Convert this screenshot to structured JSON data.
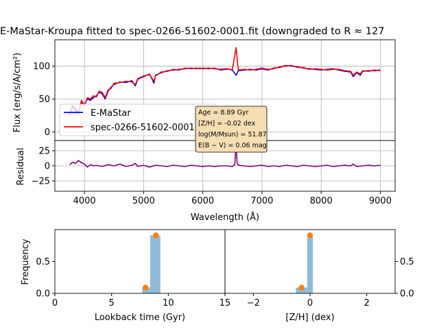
{
  "chart_data": [
    {
      "type": "line",
      "title": "E-MaStar-Kroupa fitted to spec-0266-51602-0001.fit (downgraded to R ≈ 127",
      "ylabel": "Flux (erg/s/A/cm²)",
      "xlim": [
        3500,
        9250
      ],
      "ylim": [
        -13,
        140
      ],
      "yticks": [
        0,
        50,
        100
      ],
      "grid": true,
      "legend_position": "center-left",
      "series": [
        {
          "name": "E-MaStar",
          "color": "#0000ff",
          "x": [
            3750,
            3800,
            3850,
            3900,
            3950,
            4000,
            4050,
            4100,
            4150,
            4200,
            4250,
            4300,
            4350,
            4400,
            4450,
            4500,
            4600,
            4700,
            4800,
            4861,
            4900,
            5000,
            5100,
            5175,
            5200,
            5300,
            5400,
            5500,
            5600,
            5700,
            5800,
            5893,
            5950,
            6000,
            6100,
            6200,
            6300,
            6400,
            6500,
            6563,
            6600,
            6700,
            6800,
            6900,
            7000,
            7100,
            7200,
            7300,
            7400,
            7500,
            7600,
            7700,
            7800,
            7900,
            8000,
            8100,
            8200,
            8300,
            8400,
            8500,
            8542,
            8600,
            8662,
            8700,
            8800,
            8900,
            9000
          ],
          "y": [
            28,
            40,
            35,
            30,
            45,
            42,
            50,
            48,
            52,
            55,
            60,
            58,
            50,
            62,
            68,
            72,
            76,
            75,
            78,
            70,
            80,
            84,
            88,
            74,
            86,
            90,
            93,
            94,
            95,
            96,
            97,
            96,
            97,
            96,
            97,
            96,
            95,
            96,
            94,
            86,
            93,
            94,
            95,
            94,
            96,
            94,
            97,
            98,
            101,
            100,
            99,
            97,
            96,
            95,
            94,
            95,
            96,
            94,
            92,
            91,
            84,
            90,
            86,
            92,
            93,
            93,
            94
          ]
        },
        {
          "name": "spec-0266-51602-0001.fit",
          "color": "#ff0000",
          "x": [
            3750,
            3800,
            3850,
            3900,
            3950,
            4000,
            4050,
            4100,
            4150,
            4200,
            4250,
            4300,
            4350,
            4400,
            4450,
            4500,
            4600,
            4700,
            4800,
            4861,
            4900,
            5000,
            5100,
            5175,
            5200,
            5300,
            5400,
            5500,
            5600,
            5700,
            5800,
            5893,
            5950,
            6000,
            6100,
            6200,
            6300,
            6400,
            6500,
            6563,
            6600,
            6700,
            6800,
            6900,
            7000,
            7100,
            7200,
            7300,
            7400,
            7500,
            7600,
            7700,
            7800,
            7900,
            8000,
            8100,
            8200,
            8300,
            8400,
            8500,
            8542,
            8600,
            8662,
            8700,
            8800,
            8900,
            9000
          ],
          "y": [
            25,
            38,
            32,
            28,
            48,
            40,
            52,
            50,
            55,
            53,
            62,
            60,
            52,
            64,
            66,
            74,
            75,
            77,
            76,
            72,
            81,
            85,
            87,
            77,
            85,
            91,
            92,
            95,
            94,
            97,
            96,
            97,
            96,
            97,
            96,
            97,
            94,
            95,
            95,
            128,
            94,
            95,
            94,
            95,
            97,
            95,
            96,
            99,
            100,
            101,
            98,
            98,
            95,
            96,
            95,
            94,
            95,
            95,
            93,
            92,
            86,
            91,
            88,
            93,
            92,
            94,
            93
          ]
        }
      ]
    },
    {
      "type": "line",
      "xlabel": "Wavelength (Å)",
      "ylabel": "Residual",
      "xlim": [
        3500,
        9250
      ],
      "ylim": [
        -42,
        42
      ],
      "xticks": [
        4000,
        5000,
        6000,
        7000,
        8000,
        9000
      ],
      "yticks": [
        -25,
        0,
        25
      ],
      "grid": true,
      "series": [
        {
          "color": "#800080",
          "x": [
            3750,
            3800,
            3850,
            3900,
            3950,
            4000,
            4050,
            4100,
            4150,
            4200,
            4300,
            4400,
            4500,
            4600,
            4700,
            4800,
            4861,
            4900,
            5000,
            5100,
            5200,
            5300,
            5400,
            5500,
            5600,
            5700,
            5800,
            5900,
            6000,
            6100,
            6200,
            6300,
            6400,
            6500,
            6540,
            6563,
            6580,
            6600,
            6700,
            6800,
            6900,
            7000,
            7100,
            7200,
            7300,
            7400,
            7500,
            7600,
            7700,
            7800,
            7900,
            8000,
            8100,
            8200,
            8300,
            8400,
            8500,
            8542,
            8600,
            8700,
            8800,
            8900,
            9000
          ],
          "y": [
            2,
            6,
            4,
            9,
            5,
            3,
            -2,
            2,
            0,
            1,
            -1,
            2,
            0,
            3,
            -1,
            1,
            4,
            -1,
            1,
            -2,
            1,
            0,
            -1,
            1,
            0,
            -1,
            1,
            0,
            -1,
            0,
            -1,
            0,
            0,
            -1,
            2,
            34,
            5,
            1,
            0,
            -1,
            0,
            1,
            -1,
            0,
            -1,
            1,
            0,
            -1,
            1,
            0,
            -1,
            0,
            1,
            -1,
            0,
            1,
            0,
            3,
            -1,
            0,
            1,
            0,
            1
          ]
        }
      ]
    },
    {
      "type": "bar",
      "xlabel": "Lookback time (Gyr)",
      "ylabel": "Frequency",
      "xlim": [
        0,
        15
      ],
      "ylim": [
        0,
        1
      ],
      "xticks": [
        0,
        5,
        10,
        15
      ],
      "yticks": [
        0.0,
        0.5
      ],
      "bars": [
        {
          "x0": 7.7,
          "x1": 8.4,
          "value": 0.09
        },
        {
          "x0": 8.4,
          "x1": 9.3,
          "value": 0.91
        }
      ],
      "points": [
        {
          "x": 8.0,
          "y": 0.09
        },
        {
          "x": 8.9,
          "y": 0.91
        }
      ],
      "bar_color": "#8fbbd9",
      "point_color": "#ff7f0e"
    },
    {
      "type": "bar",
      "xlabel": "[Z/H] (dex)",
      "xlim": [
        -3,
        3
      ],
      "ylim": [
        0,
        1
      ],
      "xticks": [
        -2,
        0,
        2
      ],
      "yticks": [
        0.0,
        0.5
      ],
      "bars": [
        {
          "x0": -0.5,
          "x1": -0.1,
          "value": 0.09
        },
        {
          "x0": -0.1,
          "x1": 0.1,
          "value": 0.91
        }
      ],
      "points": [
        {
          "x": -0.3,
          "y": 0.09
        },
        {
          "x": 0.0,
          "y": 0.91
        }
      ],
      "bar_color": "#8fbbd9",
      "point_color": "#ff7f0e"
    }
  ],
  "annotation": {
    "lines": [
      "Age = 8.89 Gyr",
      "[Z/H] = -0.02 dex",
      "log(M/Msun) = 51.87",
      "E(B − V) = 0.06 mag"
    ],
    "background": "#f5deb3"
  }
}
